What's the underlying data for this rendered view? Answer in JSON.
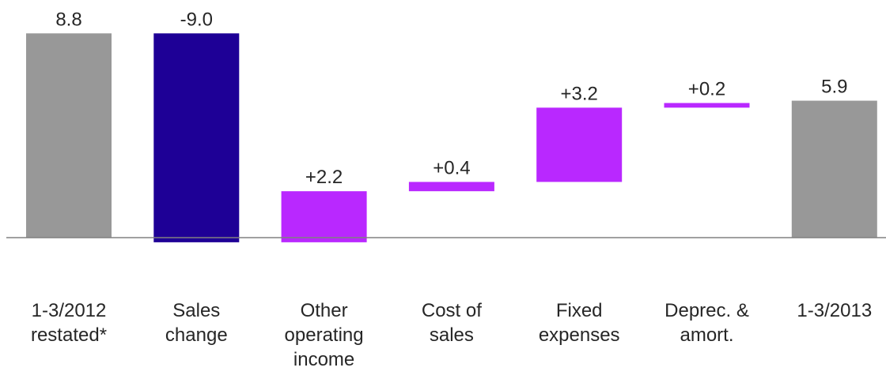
{
  "chart_data": {
    "type": "bar",
    "subtype": "waterfall",
    "title": "",
    "xlabel": "",
    "ylabel": "",
    "ylim": [
      -0.4,
      9.0
    ],
    "grid": false,
    "legend": "none",
    "categories": [
      [
        "1-3/2012",
        "restated*"
      ],
      [
        "Sales",
        "change"
      ],
      [
        "Other",
        "operating",
        "income"
      ],
      [
        "Cost of",
        "sales"
      ],
      [
        "Fixed",
        "expenses"
      ],
      [
        "Deprec. &",
        "amort."
      ],
      [
        "1-3/2013"
      ]
    ],
    "bars": [
      {
        "kind": "total",
        "start": 0,
        "end": 8.8,
        "label": "8.8"
      },
      {
        "kind": "decrease",
        "start": 8.8,
        "end": -0.2,
        "label": "-9.0"
      },
      {
        "kind": "increase",
        "start": -0.2,
        "end": 2.0,
        "label": "+2.2"
      },
      {
        "kind": "increase",
        "start": 2.0,
        "end": 2.4,
        "label": "+0.4"
      },
      {
        "kind": "increase",
        "start": 2.4,
        "end": 5.6,
        "label": "+3.2"
      },
      {
        "kind": "increase",
        "start": 5.6,
        "end": 5.8,
        "label": "+0.2"
      },
      {
        "kind": "total",
        "start": 0,
        "end": 5.9,
        "label": "5.9"
      }
    ],
    "colors": {
      "total": "#989898",
      "decrease": "#1e0096",
      "increase": "#b928ff",
      "axis": "#808080",
      "text": "#262626"
    }
  }
}
